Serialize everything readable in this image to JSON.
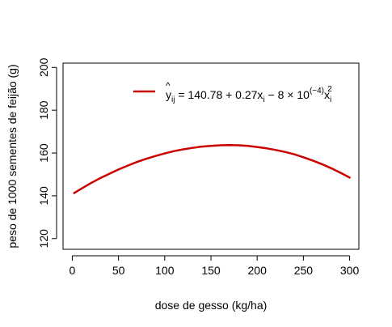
{
  "chart_data": {
    "type": "line",
    "title": "",
    "xlabel": "dose de gesso (kg/ha)",
    "ylabel": "peso de 1000 sementes de feijão (g)",
    "xlim": [
      -10,
      310
    ],
    "ylim": [
      115,
      202
    ],
    "xticks": [
      0,
      50,
      100,
      150,
      200,
      250,
      300
    ],
    "yticks": [
      120,
      140,
      160,
      180,
      200
    ],
    "xtick_labels": [
      "0",
      "50",
      "100",
      "150",
      "200",
      "250",
      "300"
    ],
    "ytick_labels": [
      "120",
      "140",
      "160",
      "180",
      "200"
    ],
    "grid": false,
    "legend_position": "top-right",
    "line_color": "#cc0000",
    "series": [
      {
        "equation": {
          "yhat": "y",
          "yhat_sub": "ij",
          "part1": " = 140.78 + 0.27x",
          "sub_i1": "i",
          "part2": " − 8 × 10",
          "exponent": "(−4)",
          "part3": "x",
          "sub_i2": "i",
          "sup2": "2"
        },
        "intercept": 140.78,
        "b1": 0.27,
        "b2": -0.0008,
        "x": [
          2,
          10,
          20,
          30,
          40,
          50,
          60,
          70,
          80,
          90,
          100,
          110,
          120,
          130,
          140,
          150,
          160,
          170,
          180,
          190,
          200,
          210,
          220,
          230,
          240,
          250,
          260,
          270,
          280,
          290,
          300
        ],
        "values": [
          141.3,
          143.4,
          145.9,
          148.2,
          150.3,
          152.3,
          154.1,
          155.8,
          157.3,
          158.6,
          159.8,
          160.9,
          161.7,
          162.4,
          163.0,
          163.3,
          163.6,
          163.7,
          163.6,
          163.3,
          162.8,
          162.2,
          161.4,
          160.5,
          159.4,
          158.0,
          156.5,
          154.8,
          152.9,
          150.8,
          148.5
        ]
      }
    ]
  }
}
